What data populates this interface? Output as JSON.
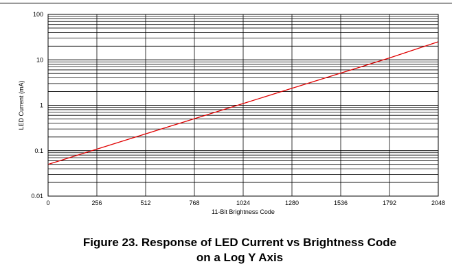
{
  "chart_data": {
    "type": "line",
    "title": "",
    "xlabel": "11-Bit Brightness Code",
    "ylabel": "LED Current (mA)",
    "xlim": [
      0,
      2048
    ],
    "ylim": [
      0.01,
      100
    ],
    "y_scale": "log",
    "grid": true,
    "x_ticks": [
      "0",
      "256",
      "512",
      "768",
      "1024",
      "1280",
      "1536",
      "1792",
      "2048"
    ],
    "y_ticks": [
      "100",
      "10",
      "1",
      "0.1",
      "0.01"
    ],
    "series": [
      {
        "x": [
          0,
          256,
          512,
          768,
          1024,
          1280,
          1536,
          1792,
          2048
        ],
        "y": [
          0.05,
          0.108,
          0.234,
          0.506,
          1.09,
          2.36,
          5.1,
          11.0,
          25.0
        ],
        "color": "#e00000"
      }
    ]
  },
  "caption": {
    "line1": "Figure 23. Response of LED Current vs Brightness Code",
    "line2": "on a Log Y Axis"
  }
}
